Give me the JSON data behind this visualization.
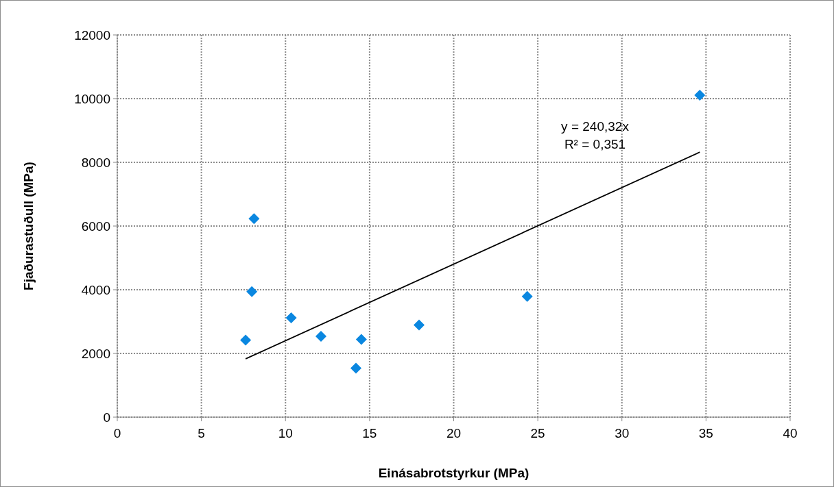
{
  "chart_data": {
    "type": "scatter",
    "xlabel": "Einásabrotstyrkur (MPa)",
    "ylabel": "Fjaðurastuðull (MPa)",
    "xlim": [
      0,
      40
    ],
    "xticks": [
      0,
      5,
      10,
      15,
      20,
      25,
      30,
      35,
      40
    ],
    "ylim": [
      0,
      12000
    ],
    "yticks": [
      0,
      2000,
      4000,
      6000,
      8000,
      10000,
      12000
    ],
    "grid": true,
    "marker": "diamond",
    "series": [
      {
        "color": "#0a87e0",
        "x": [
          8.13,
          8.0,
          7.63,
          10.34,
          12.11,
          14.51,
          14.19,
          17.94,
          24.37,
          34.63
        ],
        "values": [
          6230,
          3940,
          2420,
          3120,
          2540,
          2440,
          1540,
          2890,
          3790,
          10110
        ]
      },
      {
        "type": "line",
        "color": "#000000",
        "marker": "none",
        "line_style": "solid",
        "x": [
          7.63,
          34.63
        ],
        "values": [
          1830,
          8320
        ]
      }
    ],
    "annotations": [
      "y = 240,32x",
      "R² = 0,351"
    ]
  }
}
